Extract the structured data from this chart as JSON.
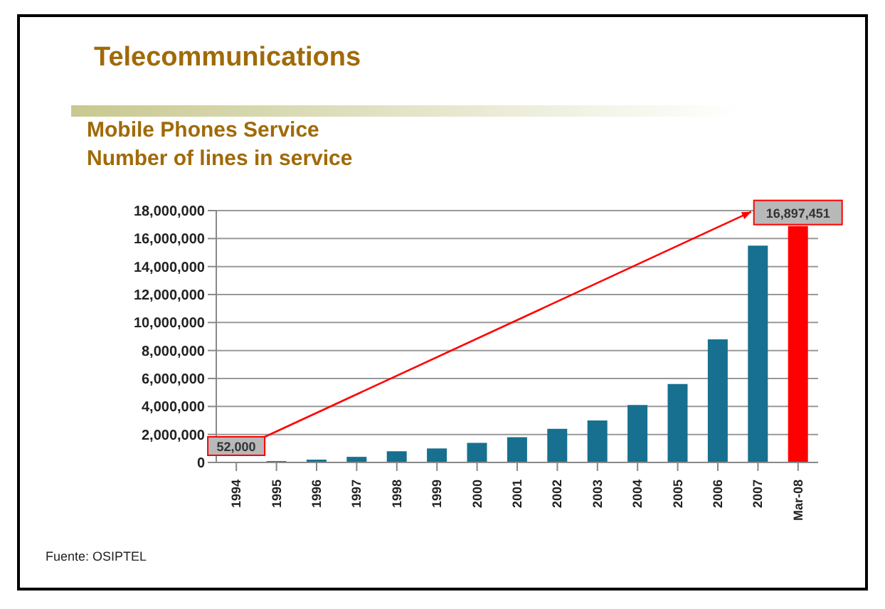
{
  "chart_data": {
    "type": "bar",
    "title": "Telecommunications",
    "subtitle": "Mobile Phones Service\nNumber of lines in service",
    "categories": [
      "1994",
      "1995",
      "1996",
      "1997",
      "1998",
      "1999",
      "2000",
      "2001",
      "2002",
      "2003",
      "2004",
      "2005",
      "2006",
      "2007",
      "Mar-08"
    ],
    "values": [
      52000,
      100000,
      200000,
      400000,
      800000,
      1000000,
      1400000,
      1800000,
      2400000,
      3000000,
      4100000,
      5600000,
      8800000,
      15500000,
      16897451
    ],
    "colors": [
      "#17708f",
      "#17708f",
      "#17708f",
      "#17708f",
      "#17708f",
      "#17708f",
      "#17708f",
      "#17708f",
      "#17708f",
      "#17708f",
      "#17708f",
      "#17708f",
      "#17708f",
      "#17708f",
      "#ff0000"
    ],
    "value_labels": [
      "52,000",
      null,
      null,
      null,
      null,
      null,
      null,
      null,
      null,
      null,
      null,
      null,
      null,
      null,
      "16,897,451"
    ],
    "ylim": [
      0,
      18000000
    ],
    "yticks": [
      0,
      {
        "value": 2000000,
        "label": "2,000,000"
      },
      {
        "value": 4000000,
        "label": "4,000,000"
      },
      {
        "value": 6000000,
        "label": "6,000,000"
      },
      {
        "value": 8000000,
        "label": "8,000,000"
      },
      {
        "value": 10000000,
        "label": "10,000,000"
      },
      {
        "value": 12000000,
        "label": "12,000,000"
      },
      {
        "value": 14000000,
        "label": "14,000,000"
      },
      {
        "value": 16000000,
        "label": "16,000,000"
      },
      {
        "value": 18000000,
        "label": "18,000,000"
      }
    ],
    "grid": "y",
    "annotations": [
      "Fuente: OSIPTEL"
    ]
  }
}
